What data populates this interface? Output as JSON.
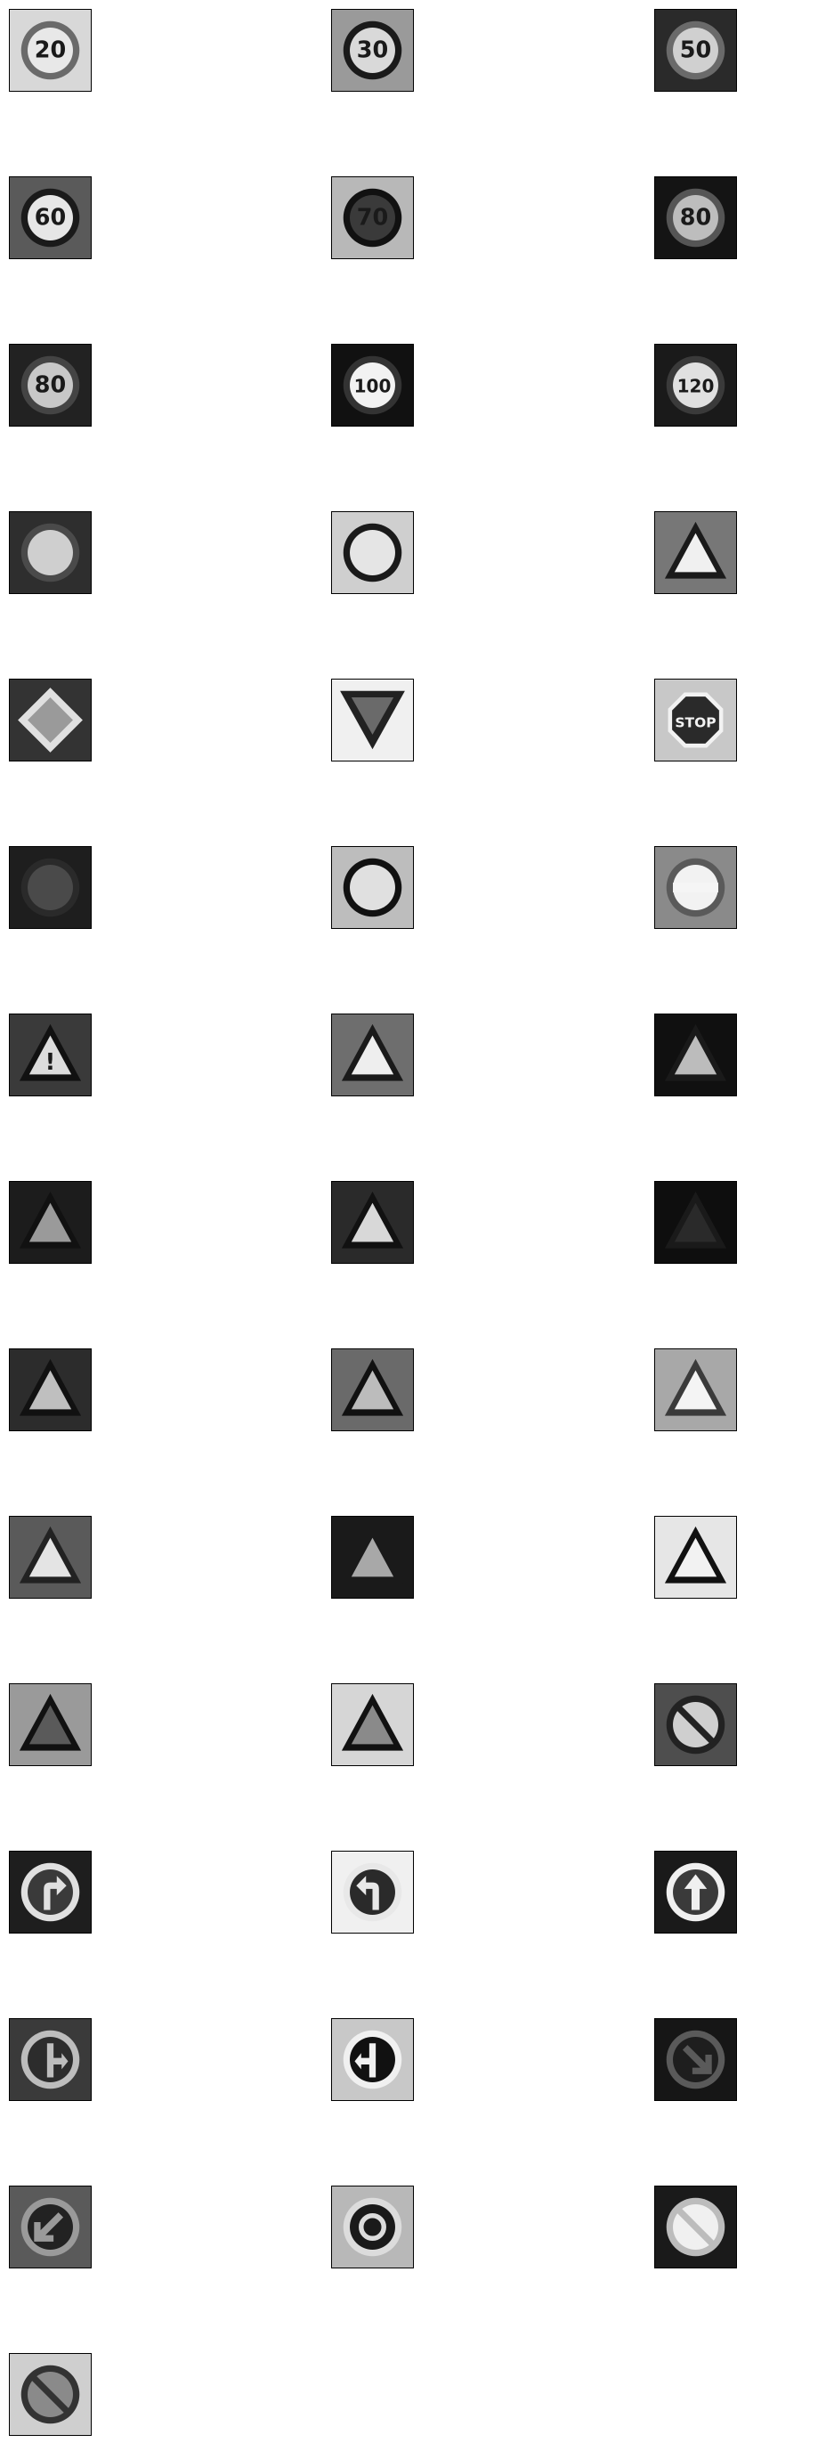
{
  "grid": {
    "columns": 3,
    "signs": [
      {
        "name": "speed-limit-20-sign",
        "text": "20",
        "bg": "#d8d8d8",
        "shape": "circle",
        "fg": "#6a6a6a",
        "inner": "#e8e8e8"
      },
      {
        "name": "speed-limit-30-sign",
        "text": "30",
        "bg": "#9a9a9a",
        "shape": "circle",
        "fg": "#1a1a1a",
        "inner": "#d9d9d9"
      },
      {
        "name": "speed-limit-50-sign",
        "text": "50",
        "bg": "#2a2a2a",
        "shape": "circle",
        "fg": "#6a6a6a",
        "inner": "#d0d0d0"
      },
      {
        "name": "speed-limit-60-sign",
        "text": "60",
        "bg": "#5a5a5a",
        "shape": "circle",
        "fg": "#1a1a1a",
        "inner": "#e6e6e6"
      },
      {
        "name": "speed-limit-70-sign",
        "text": "70",
        "bg": "#b8b8b8",
        "shape": "circle",
        "fg": "#111111",
        "inner": "#3a3a3a"
      },
      {
        "name": "speed-limit-80-sign",
        "text": "80",
        "bg": "#141414",
        "shape": "circle",
        "fg": "#555555",
        "inner": "#bdbdbd"
      },
      {
        "name": "end-speed-limit-80-sign",
        "text": "80",
        "bg": "#222222",
        "shape": "circle",
        "fg": "#444444",
        "inner": "#c8c8c8"
      },
      {
        "name": "speed-limit-100-sign",
        "text": "100",
        "bg": "#111111",
        "shape": "circle",
        "fg": "#333333",
        "inner": "#f2f2f2"
      },
      {
        "name": "speed-limit-120-sign",
        "text": "120",
        "bg": "#1a1a1a",
        "shape": "circle",
        "fg": "#3a3a3a",
        "inner": "#e0e0e0"
      },
      {
        "name": "no-passing-sign",
        "text": "",
        "bg": "#2e2e2e",
        "shape": "circle",
        "fg": "#4a4a4a",
        "inner": "#cfcfcf"
      },
      {
        "name": "no-passing-trucks-sign",
        "text": "",
        "bg": "#cfcfcf",
        "shape": "circle",
        "fg": "#1a1a1a",
        "inner": "#e5e5e5"
      },
      {
        "name": "right-of-way-sign",
        "text": "",
        "bg": "#777777",
        "shape": "triangle",
        "fg": "#1a1a1a",
        "inner": "#f0f0f0"
      },
      {
        "name": "priority-road-sign",
        "text": "",
        "bg": "#333333",
        "shape": "diamond",
        "fg": "#e0e0e0",
        "inner": "#9a9a9a"
      },
      {
        "name": "yield-sign",
        "text": "",
        "bg": "#f0f0f0",
        "shape": "inv-triangle",
        "fg": "#222222",
        "inner": "#6a6a6a"
      },
      {
        "name": "stop-sign",
        "text": "STOP",
        "bg": "#c8c8c8",
        "shape": "octagon",
        "fg": "#2a2a2a",
        "inner": "#2a2a2a"
      },
      {
        "name": "no-vehicles-sign",
        "text": "",
        "bg": "#1e1e1e",
        "shape": "circle",
        "fg": "#2a2a2a",
        "inner": "#4a4a4a"
      },
      {
        "name": "no-trucks-sign",
        "text": "",
        "bg": "#bdbdbd",
        "shape": "circle",
        "fg": "#111111",
        "inner": "#e0e0e0"
      },
      {
        "name": "no-entry-sign",
        "text": "",
        "bg": "#8a8a8a",
        "shape": "noentry",
        "fg": "#5a5a5a",
        "inner": "#f2f2f2"
      },
      {
        "name": "general-caution-sign",
        "text": "!",
        "bg": "#3a3a3a",
        "shape": "triangle",
        "fg": "#111111",
        "inner": "#dcdcdc"
      },
      {
        "name": "dangerous-curve-left-sign",
        "text": "",
        "bg": "#6e6e6e",
        "shape": "triangle",
        "fg": "#1a1a1a",
        "inner": "#eeeeee"
      },
      {
        "name": "dangerous-curve-right-sign",
        "text": "",
        "bg": "#101010",
        "shape": "triangle",
        "fg": "#1a1a1a",
        "inner": "#bcbcbc"
      },
      {
        "name": "double-curve-sign",
        "text": "",
        "bg": "#1c1c1c",
        "shape": "triangle",
        "fg": "#111111",
        "inner": "#9a9a9a"
      },
      {
        "name": "bumpy-road-sign",
        "text": "",
        "bg": "#2a2a2a",
        "shape": "triangle",
        "fg": "#111111",
        "inner": "#d8d8d8"
      },
      {
        "name": "slippery-road-sign",
        "text": "",
        "bg": "#0e0e0e",
        "shape": "triangle",
        "fg": "#1a1a1a",
        "inner": "#2a2a2a"
      },
      {
        "name": "road-narrows-sign",
        "text": "",
        "bg": "#2c2c2c",
        "shape": "triangle",
        "fg": "#111111",
        "inner": "#bfbfbf"
      },
      {
        "name": "road-work-sign",
        "text": "",
        "bg": "#6a6a6a",
        "shape": "triangle",
        "fg": "#111111",
        "inner": "#bcbcbc"
      },
      {
        "name": "traffic-signals-sign",
        "text": "",
        "bg": "#a8a8a8",
        "shape": "triangle",
        "fg": "#3a3a3a",
        "inner": "#f4f4f4"
      },
      {
        "name": "pedestrians-sign",
        "text": "",
        "bg": "#5a5a5a",
        "shape": "triangle",
        "fg": "#222222",
        "inner": "#e4e4e4"
      },
      {
        "name": "children-crossing-sign",
        "text": "",
        "bg": "#1a1a1a",
        "shape": "triangle",
        "fg": "#1a1a1a",
        "inner": "#a8a8a8"
      },
      {
        "name": "bicycles-crossing-sign",
        "text": "",
        "bg": "#e6e6e6",
        "shape": "triangle",
        "fg": "#111111",
        "inner": "#f2f2f2"
      },
      {
        "name": "beware-ice-snow-sign",
        "text": "",
        "bg": "#9a9a9a",
        "shape": "triangle",
        "fg": "#111111",
        "inner": "#5a5a5a"
      },
      {
        "name": "wild-animals-crossing-sign",
        "text": "",
        "bg": "#d6d6d6",
        "shape": "triangle",
        "fg": "#111111",
        "inner": "#8a8a8a"
      },
      {
        "name": "end-all-limits-sign",
        "text": "",
        "bg": "#4e4e4e",
        "shape": "endlimit",
        "fg": "#222222",
        "inner": "#cfcfcf"
      },
      {
        "name": "turn-right-ahead-sign",
        "text": "",
        "bg": "#1e1e1e",
        "shape": "arrow-turn-right",
        "fg": "#e0e0e0",
        "inner": "#3a3a3a"
      },
      {
        "name": "turn-left-ahead-sign",
        "text": "",
        "bg": "#f0f0f0",
        "shape": "arrow-turn-left",
        "fg": "#e8e8e8",
        "inner": "#2a2a2a"
      },
      {
        "name": "ahead-only-sign",
        "text": "",
        "bg": "#1a1a1a",
        "shape": "arrow-up",
        "fg": "#f0f0f0",
        "inner": "#3a3a3a"
      },
      {
        "name": "go-straight-or-right-sign",
        "text": "",
        "bg": "#3a3a3a",
        "shape": "arrow-straight-right",
        "fg": "#bdbdbd",
        "inner": "#2c2c2c"
      },
      {
        "name": "go-straight-or-left-sign",
        "text": "",
        "bg": "#c8c8c8",
        "shape": "arrow-straight-left",
        "fg": "#f0f0f0",
        "inner": "#111111"
      },
      {
        "name": "keep-right-sign",
        "text": "",
        "bg": "#161616",
        "shape": "arrow-down-right",
        "fg": "#5a5a5a",
        "inner": "#1e1e1e"
      },
      {
        "name": "keep-left-sign",
        "text": "",
        "bg": "#5a5a5a",
        "shape": "arrow-down-left",
        "fg": "#9a9a9a",
        "inner": "#222222"
      },
      {
        "name": "roundabout-mandatory-sign",
        "text": "",
        "bg": "#b8b8b8",
        "shape": "roundabout",
        "fg": "#dcdcdc",
        "inner": "#1a1a1a"
      },
      {
        "name": "end-no-passing-sign",
        "text": "",
        "bg": "#1a1a1a",
        "shape": "endlimit",
        "fg": "#bcbcbc",
        "inner": "#f0f0f0"
      },
      {
        "name": "end-no-passing-trucks-sign",
        "text": "",
        "bg": "#cfcfcf",
        "shape": "endlimit",
        "fg": "#333333",
        "inner": "#8a8a8a"
      }
    ]
  }
}
